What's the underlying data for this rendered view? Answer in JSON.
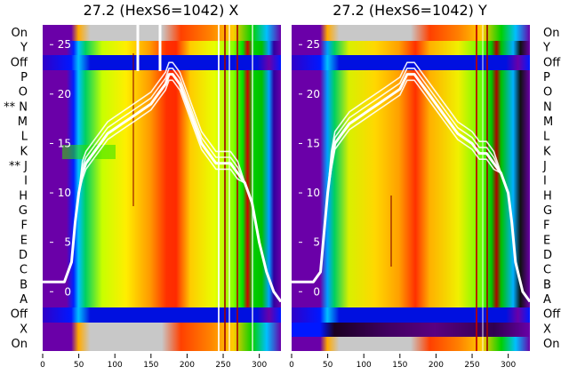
{
  "chart_data": {
    "type": "heatmap",
    "x_ticks": [
      0,
      50,
      100,
      150,
      200,
      250,
      300
    ],
    "x_range": [
      0,
      330
    ],
    "y_ticks": [
      0,
      5,
      10,
      15,
      20,
      25
    ],
    "y_range": [
      -6,
      27
    ],
    "row_labels_left": [
      "On",
      "Y",
      "Off",
      "P",
      "O",
      "** N",
      "M",
      "L",
      "K",
      "** J",
      "I",
      "H",
      "G",
      "F",
      "E",
      "D",
      "C",
      "B",
      "A",
      "Off",
      "X",
      "On"
    ],
    "row_labels_right": [
      "On",
      "Y",
      "Off",
      "P",
      "O",
      "N",
      "M",
      "L",
      "K",
      "J",
      "I",
      "H",
      "G",
      "F",
      "E",
      "D",
      "C",
      "B",
      "A",
      "Off",
      "X",
      "On"
    ],
    "panels": [
      {
        "title": "27.2 (HexS6=1042) X",
        "profile": {
          "x": [
            0,
            30,
            40,
            45,
            50,
            55,
            60,
            70,
            80,
            90,
            100,
            110,
            120,
            130,
            140,
            150,
            160,
            170,
            175,
            180,
            190,
            200,
            210,
            220,
            230,
            240,
            250,
            260,
            270,
            280,
            290,
            300,
            310,
            320,
            330
          ],
          "y": [
            1,
            1,
            3,
            7,
            10,
            12,
            13,
            14,
            15,
            16,
            16.5,
            17,
            17.5,
            18,
            18.5,
            19,
            20,
            21,
            22,
            22,
            21,
            19,
            17,
            15,
            14,
            13,
            13,
            13,
            12,
            11,
            9,
            5,
            2,
            0,
            -1
          ]
        }
      },
      {
        "title": "27.2 (HexS6=1042) Y",
        "profile": {
          "x": [
            0,
            30,
            40,
            45,
            50,
            55,
            60,
            70,
            80,
            90,
            100,
            110,
            120,
            130,
            140,
            150,
            160,
            170,
            180,
            190,
            200,
            210,
            220,
            230,
            240,
            250,
            260,
            270,
            280,
            290,
            300,
            305,
            310,
            320,
            330
          ],
          "y": [
            1,
            1,
            2,
            6,
            10,
            13,
            15,
            16,
            17,
            17.5,
            18,
            18.5,
            19,
            19.5,
            20,
            20.5,
            22,
            22,
            21,
            20,
            19,
            18,
            17,
            16,
            15.5,
            15,
            14,
            14,
            13,
            12,
            10,
            7,
            3,
            0,
            -1
          ]
        }
      }
    ]
  }
}
